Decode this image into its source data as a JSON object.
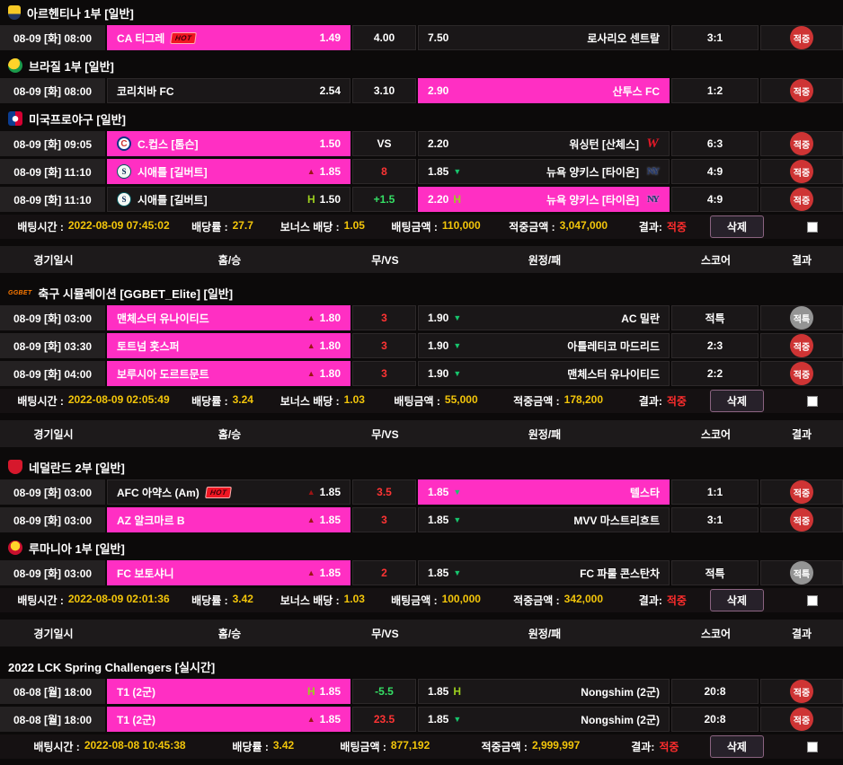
{
  "labels": {
    "hot": "HOT",
    "bet_time": "배팅시간 :",
    "total_odds": "배당률 :",
    "bonus_odds": "보너스 배당 :",
    "bet_amount": "배팅금액 :",
    "win_amount": "적중금액 :",
    "result_label": "결과:",
    "delete": "삭제"
  },
  "glyphs": {
    "up": "▲",
    "down": "▼",
    "handicap": "H"
  },
  "icons": {
    "ggbet_label": "GGBET"
  },
  "team_logos": {
    "cubs": "C",
    "mariners": "S",
    "nationals": "W",
    "yankees": "NY"
  },
  "columns": [
    "경기일시",
    "홈/승",
    "무/VS",
    "원정/패",
    "스코어",
    "결과"
  ],
  "colors": {
    "accent_pink": "#ff2fc3",
    "hit_red": "#ce3434",
    "void_grey": "#949494",
    "value_gold": "#f2c50a"
  },
  "blocks": [
    {
      "type": "league",
      "icon": "argentina-league",
      "title": "아르헨티나 1부 [일반]"
    },
    {
      "type": "match",
      "date": "08-09 [화] 08:00",
      "home": {
        "name": "CA 티그레",
        "hot": true,
        "odds": "1.49",
        "hl": true
      },
      "mid": {
        "text": "4.00",
        "color": "white"
      },
      "away": {
        "odds": "7.50",
        "name": "로사리오 센트랄"
      },
      "score": "3:1",
      "result": {
        "text": "적중",
        "kind": "hit"
      }
    },
    {
      "type": "league",
      "icon": "brazil-league",
      "title": "브라질 1부 [일반]"
    },
    {
      "type": "match",
      "date": "08-09 [화] 08:00",
      "home": {
        "name": "코리치바 FC",
        "odds": "2.54"
      },
      "mid": {
        "text": "3.10",
        "color": "white"
      },
      "away": {
        "odds": "2.90",
        "name": "산투스 FC",
        "hl": true
      },
      "score": "1:2",
      "result": {
        "text": "적중",
        "kind": "hit"
      }
    },
    {
      "type": "league",
      "icon": "mlb",
      "title": "미국프로야구 [일반]"
    },
    {
      "type": "match",
      "date": "08-09 [화] 09:05",
      "home": {
        "logo": "cubs",
        "name": "C.컵스 [톰슨]",
        "odds": "1.50",
        "hl": true
      },
      "mid": {
        "text": "VS",
        "color": "white"
      },
      "away": {
        "odds": "2.20",
        "name": "워싱턴 [산체스]",
        "logo": "nationals"
      },
      "score": "6:3",
      "result": {
        "text": "적중",
        "kind": "hit"
      }
    },
    {
      "type": "match",
      "date": "08-09 [화] 11:10",
      "home": {
        "logo": "mariners",
        "name": "시애틀 [길버트]",
        "marker": "up",
        "odds": "1.85",
        "hl": true
      },
      "mid": {
        "text": "8",
        "color": "red"
      },
      "away": {
        "odds": "1.85",
        "marker": "down",
        "name": "뉴욕 양키스 [타이온]",
        "logo": "yankees"
      },
      "score": "4:9",
      "result": {
        "text": "적중",
        "kind": "hit"
      }
    },
    {
      "type": "match",
      "date": "08-09 [화] 11:10",
      "home": {
        "logo": "mariners",
        "name": "시애틀 [길버트]",
        "marker": "handicap",
        "odds": "1.50"
      },
      "mid": {
        "text": "+1.5",
        "color": "green"
      },
      "away": {
        "odds": "2.20",
        "marker": "handicap",
        "name": "뉴욕 양키스 [타이온]",
        "logo": "yankees",
        "hl": true
      },
      "score": "4:9",
      "result": {
        "text": "적중",
        "kind": "hit"
      }
    },
    {
      "type": "summary",
      "time": "2022-08-09 07:45:02",
      "odds": "27.7",
      "bonus": "1.05",
      "bet": "110,000",
      "win": "3,047,000",
      "result": "적중"
    },
    {
      "type": "colheader"
    },
    {
      "type": "league",
      "icon": "ggbet",
      "title": "축구 시뮬레이션 [GGBET_Elite] [일반]"
    },
    {
      "type": "match",
      "date": "08-09 [화] 03:00",
      "home": {
        "name": "맨체스터 유나이티드",
        "marker": "up",
        "odds": "1.80",
        "hl": true
      },
      "mid": {
        "text": "3",
        "color": "red"
      },
      "away": {
        "odds": "1.90",
        "marker": "down",
        "name": "AC 밀란"
      },
      "score": "적특",
      "result": {
        "text": "적특",
        "kind": "void"
      }
    },
    {
      "type": "match",
      "date": "08-09 [화] 03:30",
      "home": {
        "name": "토트넘 홋스퍼",
        "marker": "up",
        "odds": "1.80",
        "hl": true
      },
      "mid": {
        "text": "3",
        "color": "red"
      },
      "away": {
        "odds": "1.90",
        "marker": "down",
        "name": "아틀레티코 마드리드"
      },
      "score": "2:3",
      "result": {
        "text": "적중",
        "kind": "hit"
      }
    },
    {
      "type": "match",
      "date": "08-09 [화] 04:00",
      "home": {
        "name": "보루시아 도르트문트",
        "marker": "up",
        "odds": "1.80",
        "hl": true
      },
      "mid": {
        "text": "3",
        "color": "red"
      },
      "away": {
        "odds": "1.90",
        "marker": "down",
        "name": "맨체스터 유나이티드"
      },
      "score": "2:2",
      "result": {
        "text": "적중",
        "kind": "hit"
      }
    },
    {
      "type": "summary",
      "time": "2022-08-09 02:05:49",
      "odds": "3.24",
      "bonus": "1.03",
      "bet": "55,000",
      "win": "178,200",
      "result": "적중"
    },
    {
      "type": "colheader"
    },
    {
      "type": "league",
      "icon": "netherlands-league",
      "title": "네덜란드 2부 [일반]"
    },
    {
      "type": "match",
      "date": "08-09 [화] 03:00",
      "home": {
        "name": "AFC 아약스 (Am)",
        "hot": true,
        "marker": "up",
        "odds": "1.85"
      },
      "mid": {
        "text": "3.5",
        "color": "red"
      },
      "away": {
        "odds": "1.85",
        "marker": "down",
        "name": "텔스타",
        "hl": true
      },
      "score": "1:1",
      "result": {
        "text": "적중",
        "kind": "hit"
      }
    },
    {
      "type": "match",
      "date": "08-09 [화] 03:00",
      "home": {
        "name": "AZ 알크마르 B",
        "marker": "up",
        "odds": "1.85",
        "hl": true
      },
      "mid": {
        "text": "3",
        "color": "red"
      },
      "away": {
        "odds": "1.85",
        "marker": "down",
        "name": "MVV 마스트리흐트"
      },
      "score": "3:1",
      "result": {
        "text": "적중",
        "kind": "hit"
      }
    },
    {
      "type": "league",
      "icon": "romania-league",
      "title": "루마니아 1부 [일반]"
    },
    {
      "type": "match",
      "date": "08-09 [화] 03:00",
      "home": {
        "name": "FC 보토샤니",
        "marker": "up",
        "odds": "1.85",
        "hl": true
      },
      "mid": {
        "text": "2",
        "color": "red"
      },
      "away": {
        "odds": "1.85",
        "marker": "down",
        "name": "FC 파룰 콘스탄차"
      },
      "score": "적특",
      "result": {
        "text": "적특",
        "kind": "void"
      }
    },
    {
      "type": "summary",
      "time": "2022-08-09 02:01:36",
      "odds": "3.42",
      "bonus": "1.03",
      "bet": "100,000",
      "win": "342,000",
      "result": "적중"
    },
    {
      "type": "colheader"
    },
    {
      "type": "league",
      "icon": null,
      "title": "2022 LCK Spring Challengers [실시간]"
    },
    {
      "type": "match",
      "date": "08-08 [월] 18:00",
      "home": {
        "name": "T1 (2군)",
        "marker": "handicap",
        "odds": "1.85",
        "hl": true
      },
      "mid": {
        "text": "-5.5",
        "color": "green"
      },
      "away": {
        "odds": "1.85",
        "marker": "handicap",
        "name": "Nongshim (2군)"
      },
      "score": "20:8",
      "result": {
        "text": "적중",
        "kind": "hit"
      }
    },
    {
      "type": "match",
      "date": "08-08 [월] 18:00",
      "home": {
        "name": "T1 (2군)",
        "marker": "up",
        "odds": "1.85",
        "hl": true
      },
      "mid": {
        "text": "23.5",
        "color": "red"
      },
      "away": {
        "odds": "1.85",
        "marker": "down",
        "name": "Nongshim (2군)"
      },
      "score": "20:8",
      "result": {
        "text": "적중",
        "kind": "hit"
      }
    },
    {
      "type": "summary",
      "time": "2022-08-08 10:45:38",
      "odds": "3.42",
      "bonus": null,
      "bet": "877,192",
      "win": "2,999,997",
      "result": "적중"
    }
  ]
}
